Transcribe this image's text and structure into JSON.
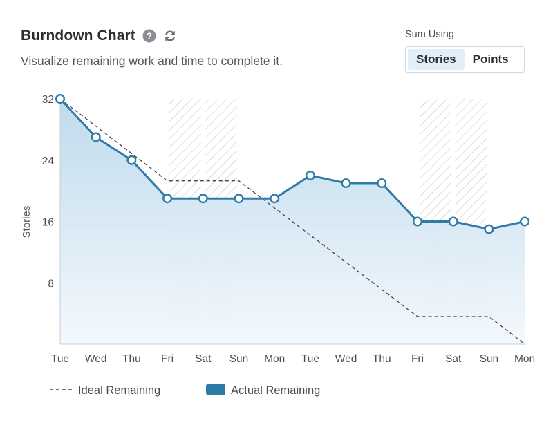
{
  "header": {
    "title": "Burndown Chart",
    "subtitle": "Visualize remaining work and time to complete it.",
    "help_icon": "question-circle-icon",
    "refresh_icon": "refresh-icon"
  },
  "sum_using": {
    "label": "Sum Using",
    "options": [
      "Stories",
      "Points"
    ],
    "selected": "Stories"
  },
  "colors": {
    "actual_line": "#2f7ba8",
    "area_top": "#bcd9ec",
    "area_bottom": "#f3f8fc",
    "ideal_line": "#444444",
    "hatch": "#c9c9c9",
    "accent_button": "#e2eff8"
  },
  "chart_data": {
    "type": "line",
    "title": "",
    "xlabel": "",
    "ylabel": "Stories",
    "categories": [
      "Tue",
      "Wed",
      "Thu",
      "Fri",
      "Sat",
      "Sun",
      "Mon",
      "Tue",
      "Wed",
      "Thu",
      "Fri",
      "Sat",
      "Sun",
      "Mon"
    ],
    "ylim": [
      0,
      32
    ],
    "yticks": [
      8,
      16,
      24,
      32
    ],
    "series": [
      {
        "name": "Actual Remaining",
        "style": "area",
        "values": [
          32,
          27,
          24,
          19,
          19,
          19,
          19,
          22,
          21,
          21,
          16,
          16,
          15,
          16
        ]
      },
      {
        "name": "Ideal Remaining",
        "style": "dashed",
        "points": [
          {
            "x": 0,
            "y": 32
          },
          {
            "x": 3,
            "y": 21.3
          },
          {
            "x": 5,
            "y": 21.3
          },
          {
            "x": 10,
            "y": 3.6
          },
          {
            "x": 12,
            "y": 3.6
          },
          {
            "x": 13,
            "y": 0
          }
        ]
      }
    ],
    "non_working_days": [
      {
        "from": 3,
        "to": 5
      },
      {
        "from": 10,
        "to": 12
      }
    ],
    "grid": false,
    "legend_position": "bottom-left"
  }
}
